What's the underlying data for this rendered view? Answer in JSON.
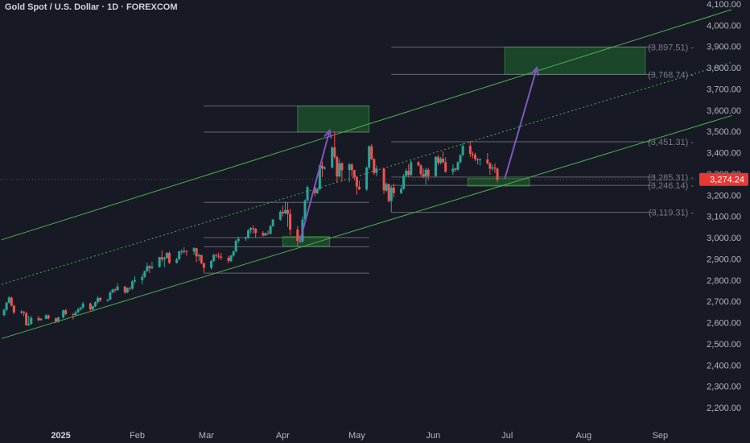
{
  "title": "Gold Spot / U.S. Dollar · 1D · FOREXCOM",
  "colors": {
    "background": "#171a24",
    "text": "#d1d4dc",
    "axis_text": "#b2b5be",
    "up_candle": "#26a69a",
    "down_candle": "#ef5350",
    "channel": "#4caf50",
    "zone_fill": "#1e5a2c",
    "arrow": "#7e57c2",
    "level_line": "#787b86",
    "price_badge": "#e53935"
  },
  "chart_data": {
    "type": "candlestick",
    "symbol": "Gold Spot / U.S. Dollar",
    "interval": "1D",
    "exchange": "FOREXCOM",
    "ylim": [
      2150,
      4100
    ],
    "y_ticks": [
      2200,
      2300,
      2400,
      2500,
      2600,
      2700,
      2800,
      2900,
      3000,
      3100,
      3200,
      3300,
      3400,
      3500,
      3600,
      3700,
      3800,
      3900,
      4000,
      4100
    ],
    "y_tick_labels": [
      "2,200.00",
      "2,300.00",
      "2,400.00",
      "2,500.00",
      "2,600.00",
      "2,700.00",
      "2,800.00",
      "2,900.00",
      "3,000.00",
      "3,100.00",
      "3,200.00",
      "3,300.00",
      "3,400.00",
      "3,500.00",
      "3,600.00",
      "3,700.00",
      "3,800.00",
      "3,900.00",
      "4,000.00",
      "4,100.00"
    ],
    "x_ticks": [
      {
        "label": "2025",
        "date": "2025-01-01",
        "bold": true
      },
      {
        "label": "Feb",
        "date": "2025-02-01",
        "bold": false
      },
      {
        "label": "Mar",
        "date": "2025-03-01",
        "bold": false
      },
      {
        "label": "Apr",
        "date": "2025-04-01",
        "bold": false
      },
      {
        "label": "May",
        "date": "2025-05-01",
        "bold": false
      },
      {
        "label": "Jun",
        "date": "2025-06-01",
        "bold": false
      },
      {
        "label": "Jul",
        "date": "2025-07-01",
        "bold": false
      },
      {
        "label": "Aug",
        "date": "2025-08-01",
        "bold": false
      },
      {
        "label": "Sep",
        "date": "2025-09-01",
        "bold": false
      }
    ],
    "current_price": 3274.24,
    "current_price_label": "3,274.24",
    "price_levels": [
      {
        "value": 3897.51,
        "label": "(3,897.51)",
        "from": "2025-05-15",
        "to": "2025-08-30"
      },
      {
        "value": 3768.74,
        "label": "(3,768.74)",
        "from": "2025-05-15",
        "to": "2025-08-30"
      },
      {
        "value": 3451.31,
        "label": "(3,451.31)",
        "from": "2025-05-15",
        "to": "2025-08-30"
      },
      {
        "value": 3285.31,
        "label": "(3,285.31)",
        "from": "2025-05-15",
        "to": "2025-08-30"
      },
      {
        "value": 3246.14,
        "label": "(3,246.14)",
        "from": "2025-05-15",
        "to": "2025-08-30"
      },
      {
        "value": 3119.31,
        "label": "(3,119.31)",
        "from": "2025-05-15",
        "to": "2025-08-30"
      }
    ],
    "extra_lines": [
      {
        "value": 3620,
        "from": "2025-02-28",
        "to": "2025-05-06"
      },
      {
        "value": 3497,
        "from": "2025-02-28",
        "to": "2025-05-06"
      },
      {
        "value": 3166,
        "from": "2025-02-28",
        "to": "2025-05-06"
      },
      {
        "value": 3000,
        "from": "2025-02-28",
        "to": "2025-05-06"
      },
      {
        "value": 2957,
        "from": "2025-02-28",
        "to": "2025-05-06"
      },
      {
        "value": 2833,
        "from": "2025-02-28",
        "to": "2025-05-06"
      }
    ],
    "zones": [
      {
        "from": "2025-04-07",
        "to": "2025-05-06",
        "low": 3497,
        "high": 3620
      },
      {
        "from": "2025-06-30",
        "to": "2025-08-26",
        "low": 3768.74,
        "high": 3897.51
      },
      {
        "from": "2025-04-01",
        "to": "2025-04-20",
        "low": 2960,
        "high": 3005
      },
      {
        "from": "2025-06-15",
        "to": "2025-07-10",
        "low": 3243,
        "high": 3278
      }
    ],
    "channel": [
      {
        "style": "solid",
        "start": {
          "date": "2024-12-08",
          "value": 2990
        },
        "end": {
          "date": "2025-09-30",
          "value": 4074
        }
      },
      {
        "style": "dotted",
        "start": {
          "date": "2024-12-08",
          "value": 2780
        },
        "end": {
          "date": "2025-09-30",
          "value": 3826
        }
      },
      {
        "style": "solid",
        "start": {
          "date": "2024-12-08",
          "value": 2525
        },
        "end": {
          "date": "2025-09-30",
          "value": 3575
        }
      }
    ],
    "arrows": [
      {
        "start": {
          "date": "2025-04-08",
          "value": 2985
        },
        "end": {
          "date": "2025-04-20",
          "value": 3505
        }
      },
      {
        "start": {
          "date": "2025-06-30",
          "value": 3277
        },
        "end": {
          "date": "2025-07-13",
          "value": 3800
        }
      }
    ],
    "candles": [
      [
        "2024-12-09",
        2635,
        2665,
        2630,
        2660
      ],
      [
        "2024-12-10",
        2660,
        2698,
        2655,
        2694
      ],
      [
        "2024-12-11",
        2694,
        2725,
        2690,
        2718
      ],
      [
        "2024-12-12",
        2718,
        2722,
        2675,
        2680
      ],
      [
        "2024-12-13",
        2680,
        2685,
        2640,
        2648
      ],
      [
        "2024-12-16",
        2648,
        2660,
        2640,
        2652
      ],
      [
        "2024-12-17",
        2652,
        2655,
        2630,
        2645
      ],
      [
        "2024-12-18",
        2645,
        2650,
        2585,
        2588
      ],
      [
        "2024-12-19",
        2588,
        2632,
        2585,
        2594
      ],
      [
        "2024-12-20",
        2594,
        2632,
        2590,
        2622
      ],
      [
        "2024-12-23",
        2622,
        2630,
        2605,
        2612
      ],
      [
        "2024-12-24",
        2612,
        2622,
        2608,
        2618
      ],
      [
        "2024-12-26",
        2618,
        2640,
        2615,
        2634
      ],
      [
        "2024-12-27",
        2634,
        2638,
        2615,
        2620
      ],
      [
        "2024-12-30",
        2620,
        2624,
        2598,
        2605
      ],
      [
        "2024-12-31",
        2605,
        2628,
        2600,
        2624
      ],
      [
        "2025-01-02",
        2624,
        2662,
        2620,
        2658
      ],
      [
        "2025-01-03",
        2658,
        2665,
        2635,
        2640
      ],
      [
        "2025-01-06",
        2640,
        2645,
        2615,
        2636
      ],
      [
        "2025-01-07",
        2636,
        2655,
        2632,
        2648
      ],
      [
        "2025-01-08",
        2648,
        2670,
        2645,
        2662
      ],
      [
        "2025-01-09",
        2662,
        2675,
        2655,
        2670
      ],
      [
        "2025-01-10",
        2670,
        2698,
        2665,
        2690
      ],
      [
        "2025-01-13",
        2690,
        2694,
        2656,
        2662
      ],
      [
        "2025-01-14",
        2662,
        2680,
        2658,
        2677
      ],
      [
        "2025-01-15",
        2677,
        2700,
        2672,
        2696
      ],
      [
        "2025-01-16",
        2696,
        2725,
        2690,
        2716
      ],
      [
        "2025-01-17",
        2716,
        2720,
        2698,
        2704
      ],
      [
        "2025-01-20",
        2704,
        2712,
        2698,
        2708
      ],
      [
        "2025-01-21",
        2708,
        2748,
        2705,
        2742
      ],
      [
        "2025-01-22",
        2742,
        2760,
        2738,
        2756
      ],
      [
        "2025-01-23",
        2756,
        2762,
        2742,
        2753
      ],
      [
        "2025-01-24",
        2753,
        2785,
        2750,
        2770
      ],
      [
        "2025-01-27",
        2770,
        2772,
        2735,
        2742
      ],
      [
        "2025-01-28",
        2742,
        2765,
        2738,
        2763
      ],
      [
        "2025-01-29",
        2763,
        2768,
        2750,
        2760
      ],
      [
        "2025-01-30",
        2760,
        2800,
        2755,
        2794
      ],
      [
        "2025-01-31",
        2794,
        2818,
        2785,
        2800
      ],
      [
        "2025-02-03",
        2800,
        2830,
        2780,
        2815
      ],
      [
        "2025-02-04",
        2815,
        2845,
        2810,
        2842
      ],
      [
        "2025-02-05",
        2842,
        2882,
        2838,
        2866
      ],
      [
        "2025-02-06",
        2866,
        2872,
        2834,
        2856
      ],
      [
        "2025-02-07",
        2856,
        2886,
        2852,
        2862
      ],
      [
        "2025-02-10",
        2862,
        2910,
        2858,
        2908
      ],
      [
        "2025-02-11",
        2908,
        2940,
        2885,
        2898
      ],
      [
        "2025-02-12",
        2898,
        2910,
        2862,
        2905
      ],
      [
        "2025-02-13",
        2905,
        2932,
        2900,
        2928
      ],
      [
        "2025-02-14",
        2928,
        2935,
        2875,
        2882
      ],
      [
        "2025-02-17",
        2882,
        2905,
        2878,
        2898
      ],
      [
        "2025-02-18",
        2898,
        2940,
        2895,
        2935
      ],
      [
        "2025-02-19",
        2935,
        2945,
        2920,
        2932
      ],
      [
        "2025-02-20",
        2932,
        2955,
        2925,
        2938
      ],
      [
        "2025-02-21",
        2938,
        2940,
        2915,
        2935
      ],
      [
        "2025-02-24",
        2935,
        2955,
        2920,
        2950
      ],
      [
        "2025-02-25",
        2950,
        2952,
        2885,
        2912
      ],
      [
        "2025-02-26",
        2912,
        2925,
        2890,
        2918
      ],
      [
        "2025-02-27",
        2918,
        2920,
        2875,
        2880
      ],
      [
        "2025-02-28",
        2880,
        2882,
        2835,
        2858
      ],
      [
        "2025-03-03",
        2858,
        2895,
        2850,
        2890
      ],
      [
        "2025-03-04",
        2890,
        2925,
        2885,
        2918
      ],
      [
        "2025-03-05",
        2918,
        2925,
        2905,
        2915
      ],
      [
        "2025-03-06",
        2915,
        2930,
        2898,
        2910
      ],
      [
        "2025-03-07",
        2910,
        2928,
        2895,
        2905
      ],
      [
        "2025-03-10",
        2905,
        2915,
        2880,
        2890
      ],
      [
        "2025-03-11",
        2890,
        2920,
        2885,
        2915
      ],
      [
        "2025-03-12",
        2915,
        2940,
        2910,
        2935
      ],
      [
        "2025-03-13",
        2935,
        2990,
        2930,
        2985
      ],
      [
        "2025-03-14",
        2985,
        3005,
        2975,
        2995
      ],
      [
        "2025-03-17",
        2995,
        3005,
        2985,
        3000
      ],
      [
        "2025-03-18",
        3000,
        3040,
        2995,
        3035
      ],
      [
        "2025-03-19",
        3035,
        3050,
        3020,
        3045
      ],
      [
        "2025-03-20",
        3045,
        3058,
        3020,
        3042
      ],
      [
        "2025-03-21",
        3042,
        3045,
        3000,
        3022
      ],
      [
        "2025-03-24",
        3022,
        3030,
        3005,
        3010
      ],
      [
        "2025-03-25",
        3010,
        3025,
        3008,
        3020
      ],
      [
        "2025-03-26",
        3020,
        3035,
        3015,
        3018
      ],
      [
        "2025-03-27",
        3018,
        3060,
        3015,
        3055
      ],
      [
        "2025-03-28",
        3055,
        3088,
        3050,
        3085
      ],
      [
        "2025-03-31",
        3085,
        3130,
        3080,
        3122
      ],
      [
        "2025-04-01",
        3122,
        3150,
        3100,
        3115
      ],
      [
        "2025-04-02",
        3115,
        3170,
        3110,
        3130
      ],
      [
        "2025-04-03",
        3130,
        3165,
        3050,
        3112
      ],
      [
        "2025-04-04",
        3112,
        3135,
        3010,
        3038
      ],
      [
        "2025-04-07",
        3038,
        3055,
        2960,
        2985
      ],
      [
        "2025-04-08",
        2985,
        3010,
        2975,
        2982
      ],
      [
        "2025-04-09",
        2982,
        3100,
        2975,
        3085
      ],
      [
        "2025-04-10",
        3085,
        3180,
        3080,
        3175
      ],
      [
        "2025-04-11",
        3175,
        3245,
        3170,
        3238
      ],
      [
        "2025-04-14",
        3238,
        3245,
        3195,
        3210
      ],
      [
        "2025-04-15",
        3210,
        3232,
        3205,
        3228
      ],
      [
        "2025-04-16",
        3228,
        3345,
        3225,
        3340
      ],
      [
        "2025-04-17",
        3340,
        3358,
        3285,
        3325
      ],
      [
        "2025-04-18",
        3325,
        3335,
        3320,
        3330
      ],
      [
        "2025-04-21",
        3330,
        3430,
        3325,
        3425
      ],
      [
        "2025-04-22",
        3425,
        3500,
        3370,
        3380
      ],
      [
        "2025-04-23",
        3380,
        3385,
        3260,
        3288
      ],
      [
        "2025-04-24",
        3288,
        3370,
        3280,
        3350
      ],
      [
        "2025-04-25",
        3350,
        3355,
        3265,
        3318
      ],
      [
        "2025-04-28",
        3318,
        3352,
        3262,
        3345
      ],
      [
        "2025-04-29",
        3345,
        3350,
        3290,
        3318
      ],
      [
        "2025-04-30",
        3318,
        3320,
        3270,
        3285
      ],
      [
        "2025-05-01",
        3285,
        3290,
        3202,
        3240
      ],
      [
        "2025-05-02",
        3240,
        3268,
        3224,
        3228
      ],
      [
        "2025-05-05",
        3228,
        3335,
        3220,
        3330
      ],
      [
        "2025-05-06",
        3330,
        3435,
        3320,
        3430
      ],
      [
        "2025-05-07",
        3430,
        3440,
        3365,
        3370
      ],
      [
        "2025-05-08",
        3370,
        3375,
        3295,
        3305
      ],
      [
        "2025-05-09",
        3305,
        3340,
        3290,
        3325
      ],
      [
        "2025-05-12",
        3325,
        3328,
        3205,
        3222
      ],
      [
        "2025-05-13",
        3222,
        3260,
        3215,
        3252
      ],
      [
        "2025-05-14",
        3252,
        3255,
        3165,
        3172
      ],
      [
        "2025-05-15",
        3172,
        3245,
        3120,
        3236
      ],
      [
        "2025-05-16",
        3236,
        3255,
        3190,
        3210
      ],
      [
        "2025-05-19",
        3210,
        3245,
        3205,
        3230
      ],
      [
        "2025-05-20",
        3230,
        3300,
        3225,
        3290
      ],
      [
        "2025-05-21",
        3290,
        3325,
        3285,
        3315
      ],
      [
        "2025-05-22",
        3315,
        3345,
        3285,
        3295
      ],
      [
        "2025-05-23",
        3295,
        3365,
        3290,
        3355
      ],
      [
        "2025-05-26",
        3355,
        3360,
        3335,
        3340
      ],
      [
        "2025-05-27",
        3340,
        3345,
        3285,
        3300
      ],
      [
        "2025-05-28",
        3300,
        3325,
        3280,
        3288
      ],
      [
        "2025-05-29",
        3288,
        3330,
        3250,
        3320
      ],
      [
        "2025-05-30",
        3320,
        3328,
        3270,
        3290
      ],
      [
        "2025-06-02",
        3290,
        3385,
        3285,
        3380
      ],
      [
        "2025-06-03",
        3380,
        3390,
        3340,
        3352
      ],
      [
        "2025-06-04",
        3352,
        3380,
        3345,
        3372
      ],
      [
        "2025-06-05",
        3372,
        3405,
        3350,
        3355
      ],
      [
        "2025-06-06",
        3355,
        3378,
        3305,
        3310
      ],
      [
        "2025-06-09",
        3310,
        3345,
        3295,
        3325
      ],
      [
        "2025-06-10",
        3325,
        3330,
        3310,
        3320
      ],
      [
        "2025-06-11",
        3320,
        3360,
        3315,
        3355
      ],
      [
        "2025-06-12",
        3355,
        3395,
        3350,
        3388
      ],
      [
        "2025-06-13",
        3388,
        3445,
        3385,
        3432
      ],
      [
        "2025-06-16",
        3432,
        3455,
        3380,
        3395
      ],
      [
        "2025-06-17",
        3395,
        3405,
        3375,
        3390
      ],
      [
        "2025-06-18",
        3390,
        3400,
        3360,
        3370
      ],
      [
        "2025-06-19",
        3370,
        3375,
        3345,
        3365
      ],
      [
        "2025-06-20",
        3365,
        3375,
        3340,
        3368
      ],
      [
        "2025-06-23",
        3368,
        3398,
        3345,
        3350
      ],
      [
        "2025-06-24",
        3350,
        3355,
        3295,
        3325
      ],
      [
        "2025-06-25",
        3325,
        3345,
        3315,
        3330
      ],
      [
        "2025-06-26",
        3330,
        3350,
        3305,
        3325
      ],
      [
        "2025-06-27",
        3325,
        3330,
        3260,
        3274.24
      ]
    ]
  }
}
